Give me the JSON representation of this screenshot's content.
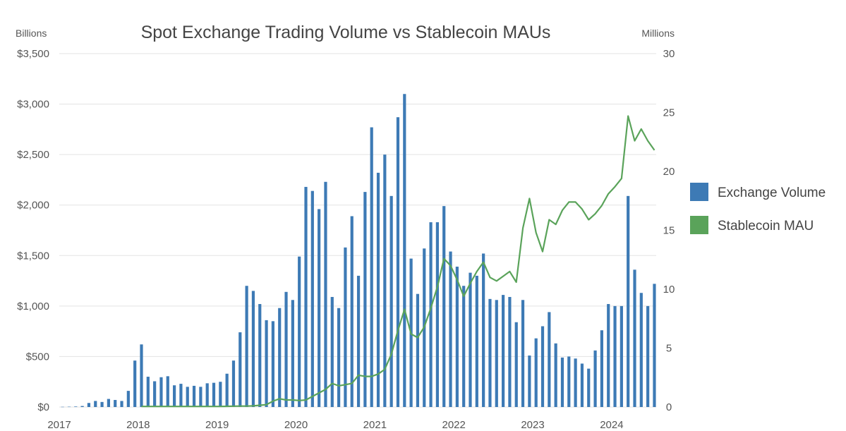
{
  "chart_data": {
    "type": "bar+line",
    "title": "Spot Exchange Trading Volume vs Stablecoin MAUs",
    "left_axis_unit": "Billions",
    "right_axis_unit": "Millions",
    "left_ticks": [
      "$0",
      "$500",
      "$1,000",
      "$1,500",
      "$2,000",
      "$2,500",
      "$3,000",
      "$3,500"
    ],
    "right_ticks": [
      "0",
      "5",
      "10",
      "15",
      "20",
      "25",
      "30"
    ],
    "x_ticks": [
      "2017",
      "2018",
      "2019",
      "2020",
      "2021",
      "2022",
      "2023",
      "2024"
    ],
    "ylim_left": [
      0,
      3500
    ],
    "ylim_right": [
      0,
      30
    ],
    "grid": true,
    "legend_position": "right",
    "series": [
      {
        "name": "Exchange Volume",
        "type": "bar",
        "color": "#3d7ab5",
        "start": "2017-01",
        "values": [
          2,
          3,
          5,
          10,
          40,
          60,
          50,
          80,
          70,
          60,
          160,
          460,
          620,
          300,
          255,
          295,
          305,
          215,
          230,
          200,
          210,
          200,
          235,
          240,
          250,
          330,
          460,
          740,
          1200,
          1150,
          1020,
          860,
          850,
          980,
          1140,
          1060,
          1490,
          2180,
          2140,
          1960,
          2230,
          1090,
          980,
          1580,
          1890,
          1300,
          2130,
          2770,
          2320,
          2500,
          2090,
          2870,
          3100,
          1470,
          1120,
          1570,
          1830,
          1830,
          1990,
          1540,
          1390,
          1200,
          1330,
          1300,
          1520,
          1070,
          1060,
          1110,
          1090,
          840,
          1060,
          510,
          680,
          800,
          940,
          630,
          490,
          500,
          480,
          430,
          380,
          560,
          760,
          1020,
          1000,
          1000,
          2090,
          1360,
          1130,
          1000,
          1220
        ]
      },
      {
        "name": "Stablecoin MAU",
        "type": "line",
        "color": "#5aa35a",
        "start": "2018-01",
        "values": [
          0.05,
          0.05,
          0.05,
          0.05,
          0.05,
          0.05,
          0.05,
          0.05,
          0.05,
          0.05,
          0.05,
          0.05,
          0.05,
          0.06,
          0.07,
          0.08,
          0.08,
          0.1,
          0.15,
          0.2,
          0.5,
          0.7,
          0.6,
          0.6,
          0.55,
          0.6,
          0.9,
          1.2,
          1.5,
          2.0,
          1.8,
          1.9,
          2.0,
          2.7,
          2.6,
          2.6,
          2.8,
          3.2,
          4.5,
          6.5,
          8.3,
          6.2,
          5.9,
          6.8,
          8.4,
          10.2,
          12.6,
          12.0,
          10.8,
          9.4,
          10.5,
          11.5,
          12.3,
          11.0,
          10.7,
          11.1,
          11.5,
          10.6,
          15.2,
          17.7,
          14.8,
          13.2,
          15.9,
          15.5,
          16.7,
          17.4,
          17.4,
          16.8,
          15.9,
          16.4,
          17.1,
          18.1,
          18.7,
          19.4,
          24.7,
          22.6,
          23.6,
          22.6,
          21.8
        ]
      }
    ]
  }
}
